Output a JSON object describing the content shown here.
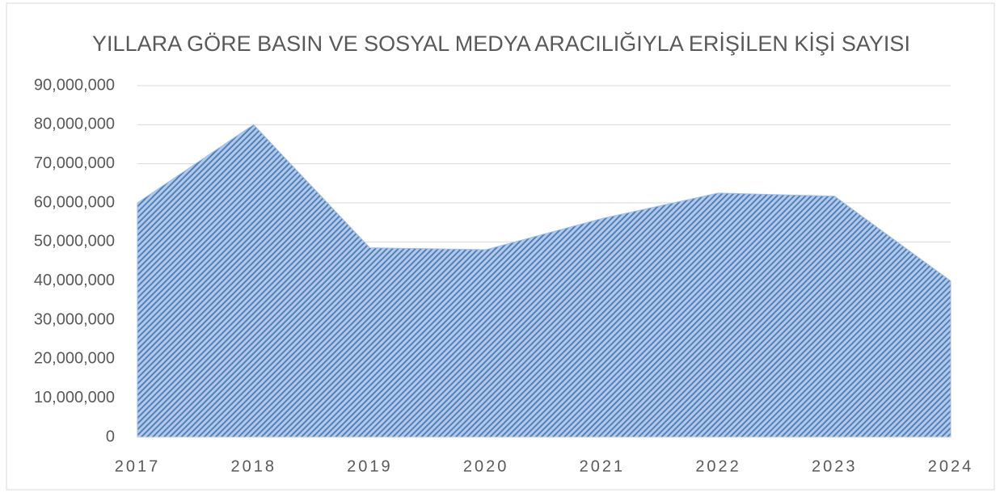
{
  "chart_data": {
    "type": "area",
    "title": "YILLARA GÖRE BASIN VE SOSYAL MEDYA ARACILIĞIYLA ERİŞİLEN KİŞİ SAYISI",
    "categories": [
      "2017",
      "2018",
      "2019",
      "2020",
      "2021",
      "2022",
      "2023",
      "2024"
    ],
    "values": [
      60000000,
      80000000,
      48500000,
      48000000,
      56000000,
      62500000,
      61700000,
      40000000
    ],
    "color": "#4f81bd",
    "ylim": [
      0,
      90000000
    ],
    "yticks": [
      0,
      {
        "value": 10000000,
        "label": "10,000,000"
      },
      {
        "value": 20000000,
        "label": "20,000,000"
      },
      {
        "value": 30000000,
        "label": "30,000,000"
      },
      {
        "value": 40000000,
        "label": "40,000,000"
      },
      {
        "value": 50000000,
        "label": "50,000,000"
      },
      {
        "value": 60000000,
        "label": "60,000,000"
      },
      {
        "value": 70000000,
        "label": "70,000,000"
      },
      {
        "value": 80000000,
        "label": "80,000,000"
      },
      {
        "value": 90000000,
        "label": "90,000,000"
      }
    ],
    "grid": true
  }
}
